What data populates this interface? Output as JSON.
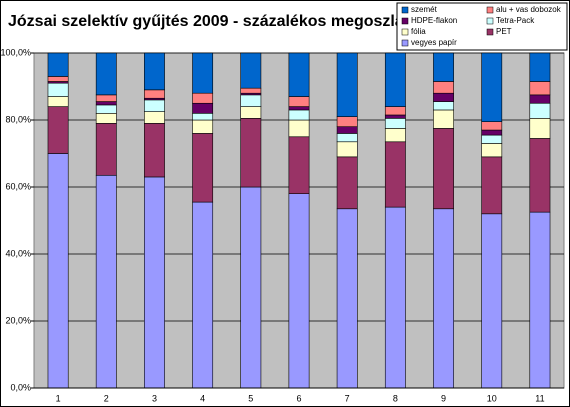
{
  "chart_data": {
    "type": "stacked_bar_100",
    "title": "Józsai szelektív gyűjtés 2009 - százalékos megoszlás",
    "categories": [
      "1",
      "2",
      "3",
      "4",
      "5",
      "6",
      "7",
      "8",
      "9",
      "10",
      "11"
    ],
    "series": [
      {
        "name": "vegyes papír",
        "color": "#9999ff",
        "values": [
          70,
          63.5,
          63,
          55.5,
          60,
          58,
          53.5,
          54,
          53.5,
          52,
          52.5
        ]
      },
      {
        "name": "PET",
        "color": "#993366",
        "values": [
          14,
          15.5,
          16,
          20.5,
          20.5,
          17,
          15.5,
          19.5,
          24,
          17,
          22
        ]
      },
      {
        "name": "fólia",
        "color": "#ffffcc",
        "values": [
          3,
          3,
          3.5,
          4,
          3.5,
          5,
          4.5,
          4,
          5.5,
          4,
          6
        ]
      },
      {
        "name": "Tetra-Pack",
        "color": "#ccffff",
        "values": [
          4,
          2.5,
          3.5,
          2,
          3.5,
          3,
          2.5,
          3,
          2.5,
          2.5,
          4.5
        ]
      },
      {
        "name": "HDPE-flakon",
        "color": "#660066",
        "values": [
          0.5,
          1,
          0.5,
          3,
          0.5,
          1,
          2,
          1,
          2.5,
          1.5,
          2.5
        ]
      },
      {
        "name": "alu + vas dobozok",
        "color": "#ff8080",
        "values": [
          1.5,
          2,
          2.5,
          3,
          1.5,
          3,
          3,
          2.5,
          3.5,
          2.5,
          4
        ]
      },
      {
        "name": "szemét",
        "color": "#0066cc",
        "values": [
          7,
          12.5,
          11,
          12,
          10.5,
          13,
          19,
          16,
          8.5,
          20.5,
          8.5
        ]
      }
    ],
    "ylim": [
      0,
      100
    ],
    "yticks": [
      {
        "value": 0,
        "label": "0,0%"
      },
      {
        "value": 20,
        "label": "20,0%"
      },
      {
        "value": 40,
        "label": "40,0%"
      },
      {
        "value": 60,
        "label": "60,0%"
      },
      {
        "value": 80,
        "label": "80,0%"
      },
      {
        "value": 100,
        "label": "100,0%"
      }
    ],
    "grid": true,
    "legend": "top-right"
  }
}
